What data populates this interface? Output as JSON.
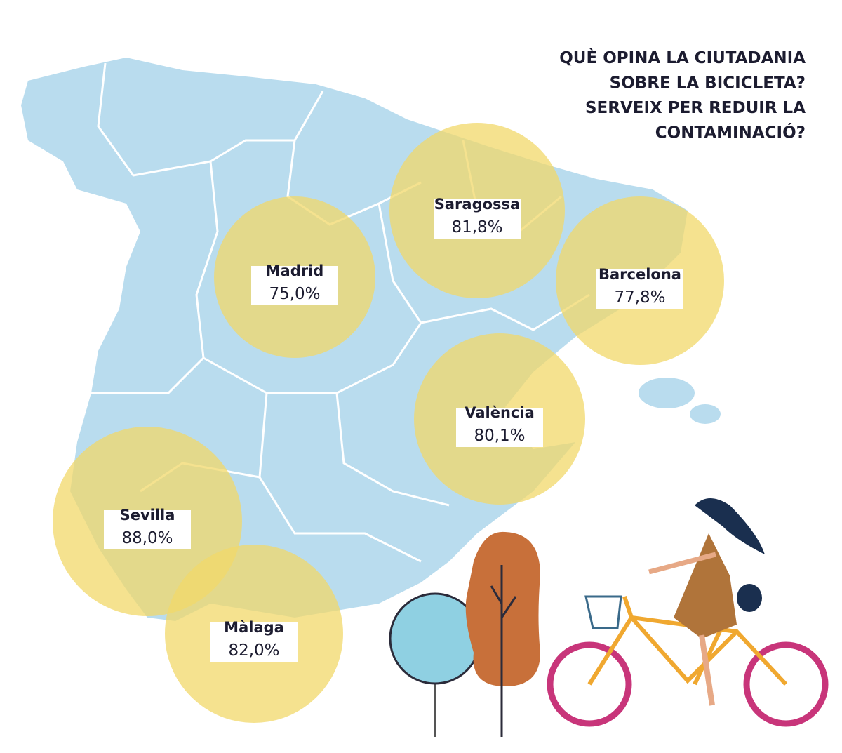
{
  "title": [
    "QUÈ OPINA LA CIUTADANIA",
    "SOBRE LA BICICLETA?",
    "SERVEIX PER REDUIR LA",
    "CONTAMINACIÓ?"
  ],
  "cities": [
    {
      "name": "Saragossa",
      "value": "81,8%"
    },
    {
      "name": "Madrid",
      "value": "75,0%"
    },
    {
      "name": "Barcelona",
      "value": "77,8%"
    },
    {
      "name": "València",
      "value": "80,1%"
    },
    {
      "name": "Sevilla",
      "value": "88,0%"
    },
    {
      "name": "Màlaga",
      "value": "82,0%"
    }
  ]
}
